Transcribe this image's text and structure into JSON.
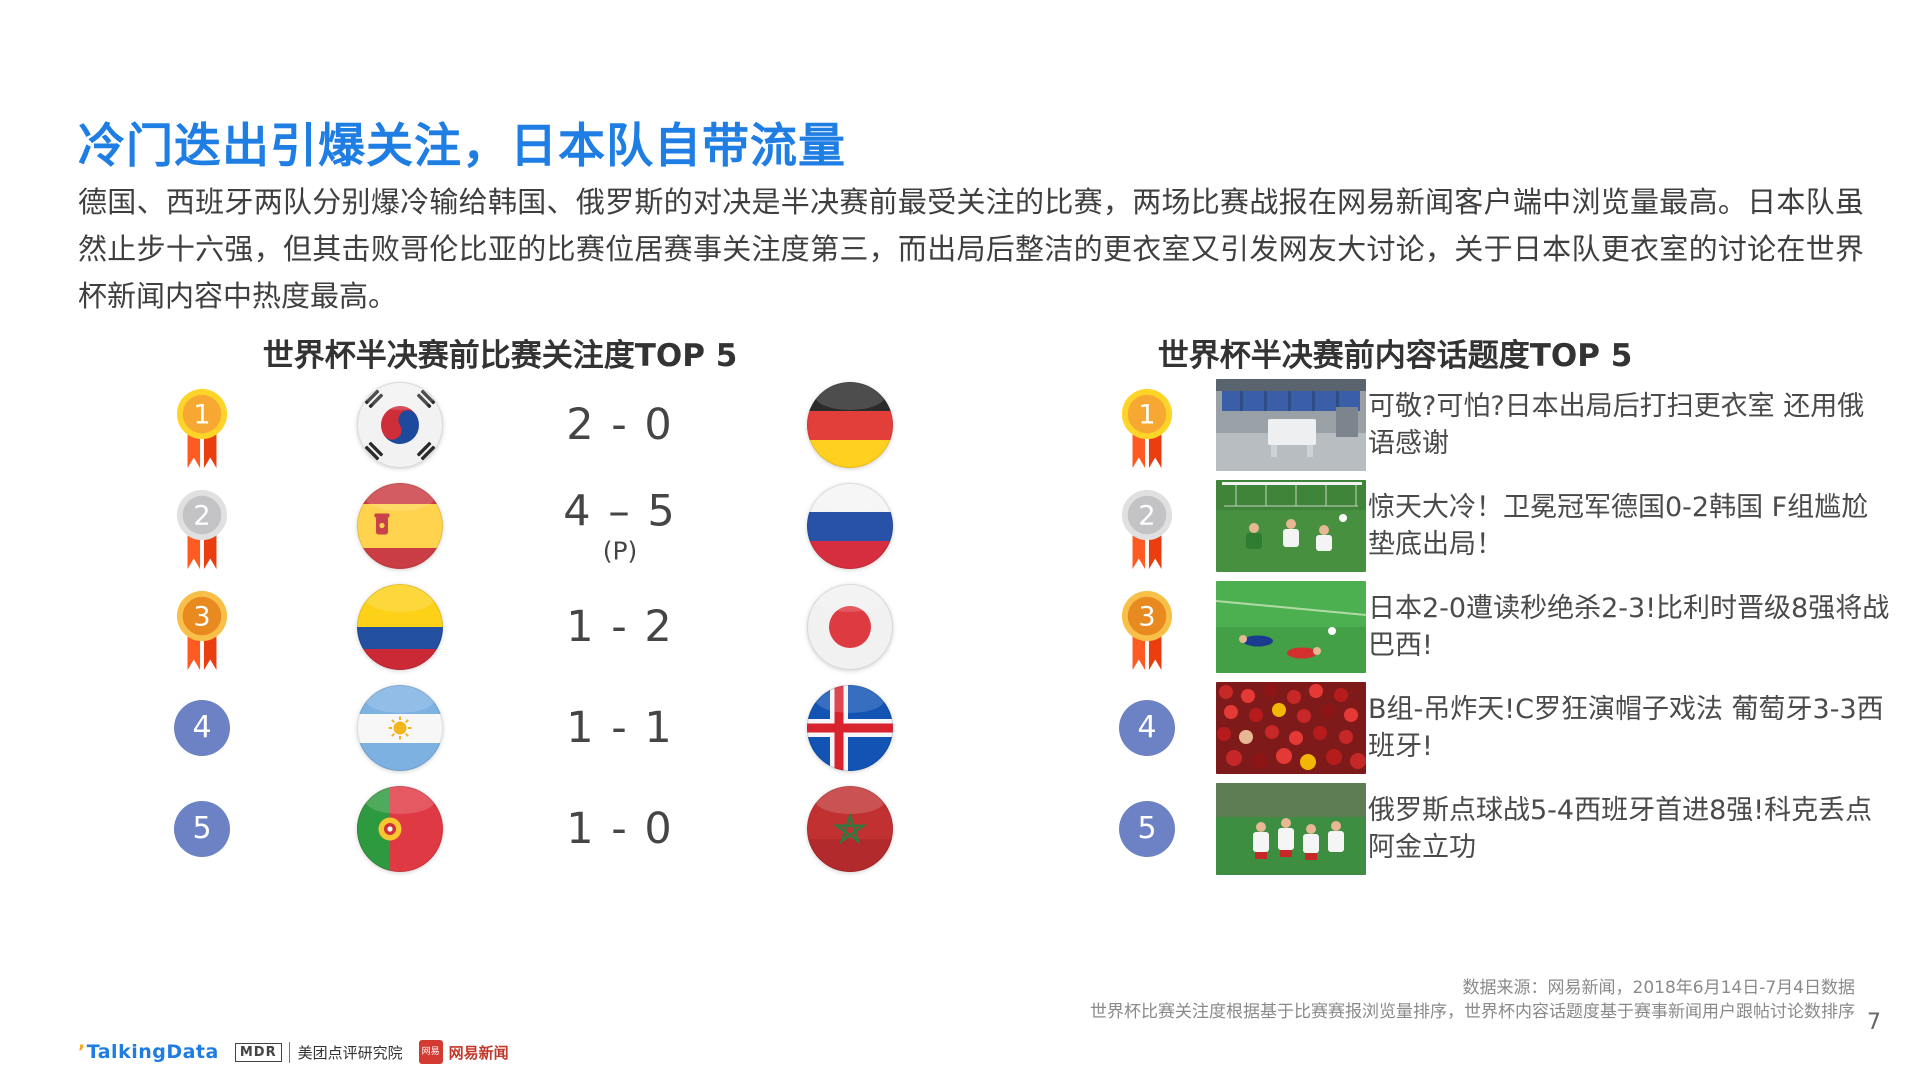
{
  "page": {
    "title": "冷门迭出引爆关注，日本队自带流量",
    "body": "德国、西班牙两队分别爆冷输给韩国、俄罗斯的对决是半决赛前最受关注的比赛，两场比赛战报在网易新闻客户端中浏览量最高。日本队虽然止步十六强，但其击败哥伦比亚的比赛位居赛事关注度第三，而出局后整洁的更衣室又引发网友大讨论，关于日本队更衣室的讨论在世界杯新闻内容中热度最高。",
    "page_number": "7"
  },
  "left_panel": {
    "title": "世界杯半决赛前比赛关注度TOP 5",
    "rows": [
      {
        "rank": "1",
        "team_a": "South Korea",
        "score": "2 - 0",
        "score_note": "",
        "team_b": "Germany"
      },
      {
        "rank": "2",
        "team_a": "Spain",
        "score": "4 – 5",
        "score_note": "(P)",
        "team_b": "Russia"
      },
      {
        "rank": "3",
        "team_a": "Colombia",
        "score": "1 - 2",
        "score_note": "",
        "team_b": "Japan"
      },
      {
        "rank": "4",
        "team_a": "Argentina",
        "score": "1 - 1",
        "score_note": "",
        "team_b": "Iceland"
      },
      {
        "rank": "5",
        "team_a": "Portugal",
        "score": "1 - 0",
        "score_note": "",
        "team_b": "Morocco"
      }
    ]
  },
  "right_panel": {
    "title": "世界杯半决赛前内容话题度TOP 5",
    "rows": [
      {
        "rank": "1",
        "headline": "可敬?可怕?日本出局后打扫更衣室 还用俄语感谢",
        "thumbnail": "locker-room"
      },
      {
        "rank": "2",
        "headline": "惊天大冷！卫冕冠军德国0-2韩国 F组尴尬垫底出局！",
        "thumbnail": "goal-scramble"
      },
      {
        "rank": "3",
        "headline": "日本2-0遭读秒绝杀2-3!比利时晋级8强将战巴西!",
        "thumbnail": "players-on-pitch"
      },
      {
        "rank": "4",
        "headline": "B组-吊炸天!C罗狂演帽子戏法 葡萄牙3-3西班牙!",
        "thumbnail": "crowd-fans"
      },
      {
        "rank": "5",
        "headline": "俄罗斯点球战5-4西班牙首进8强!科克丢点阿金立功",
        "thumbnail": "team-celebration"
      }
    ]
  },
  "footer": {
    "source_line1": "数据来源：网易新闻，2018年6月14日-7月4日数据",
    "source_line2": "世界杯比赛关注度根据基于比赛赛报浏览量排序，世界杯内容话题度基于赛事新闻用户跟帖讨论数排序",
    "logos": {
      "talkingdata": "TalkingData",
      "research_mark": "MDR",
      "research": "美团点评研究院",
      "netease_mark": "网易",
      "netease": "网易新闻"
    }
  },
  "colors": {
    "title_blue": "#1E7EE3",
    "body_text": "#3F3F3F",
    "heading_text": "#333333",
    "score_text": "#454545",
    "headline_text": "#4A4A4A",
    "footer_text": "#8A8A8A",
    "medal_gold_ring": "#FFD429",
    "medal_gold_face": "#F7A833",
    "medal_silver_ring": "#E0E0E0",
    "medal_silver_face": "#C3C3C5",
    "medal_bronze_ring": "#F8C049",
    "medal_bronze_face": "#E88A1F",
    "ribbon_left": "#FF5A22",
    "ribbon_right": "#EA3E10",
    "rank_circle_blue": "#6C82C5"
  }
}
